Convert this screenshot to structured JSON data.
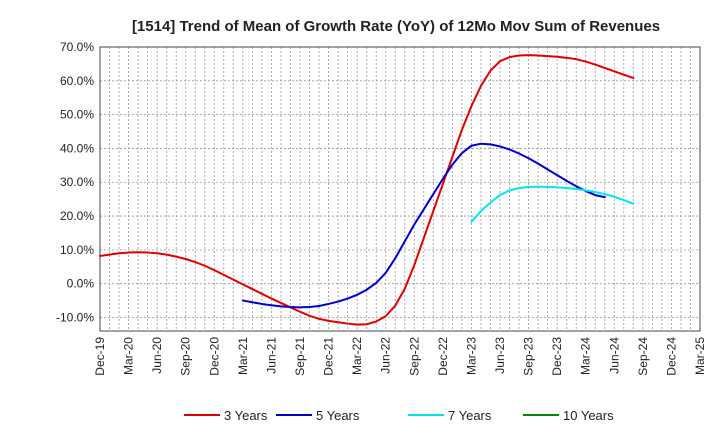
{
  "chart_data": {
    "type": "line",
    "title": "[1514]  Trend of Mean of Growth Rate (YoY) of 12Mo Mov Sum of Revenues",
    "xlabel": "",
    "ylabel": "",
    "ylim": [
      -14,
      70
    ],
    "y_ticks": [
      -10,
      0,
      10,
      20,
      30,
      40,
      50,
      60,
      70
    ],
    "y_tick_labels": [
      "-10.0%",
      "0.0%",
      "10.0%",
      "20.0%",
      "30.0%",
      "40.0%",
      "50.0%",
      "60.0%",
      "70.0%"
    ],
    "x_tick_labels": [
      "Dec-19",
      "Mar-20",
      "Jun-20",
      "Sep-20",
      "Dec-20",
      "Mar-21",
      "Jun-21",
      "Sep-21",
      "Dec-21",
      "Mar-22",
      "Jun-22",
      "Sep-22",
      "Dec-22",
      "Mar-23",
      "Jun-23",
      "Sep-23",
      "Dec-23",
      "Mar-24",
      "Jun-24",
      "Sep-24",
      "Dec-24",
      "Mar-25"
    ],
    "grid": true,
    "legend_position": "bottom",
    "series": [
      {
        "name": "3 Years",
        "color": "#dd0000",
        "start_index": 0,
        "values": [
          8.2,
          8.6,
          9.0,
          9.2,
          9.3,
          9.2,
          9.0,
          8.6,
          8.0,
          7.3,
          6.4,
          5.3,
          4.0,
          2.6,
          1.2,
          -0.2,
          -1.6,
          -3.0,
          -4.4,
          -5.7,
          -7.0,
          -8.3,
          -9.5,
          -10.4,
          -11.0,
          -11.4,
          -11.8,
          -12.1,
          -12.0,
          -11.2,
          -9.6,
          -6.5,
          -1.5,
          5.5,
          13.5,
          21.5,
          29.5,
          37.5,
          45.5,
          52.5,
          58.5,
          63.0,
          65.8,
          67.0,
          67.5,
          67.6,
          67.5,
          67.3,
          67.1,
          66.8,
          66.4,
          65.7,
          64.8,
          63.8,
          62.8,
          61.8,
          60.8
        ]
      },
      {
        "name": "5 Years",
        "color": "#0000cc",
        "start_index": 15,
        "values": [
          -5.0,
          -5.5,
          -6.0,
          -6.4,
          -6.7,
          -6.9,
          -7.0,
          -6.9,
          -6.6,
          -6.0,
          -5.3,
          -4.4,
          -3.3,
          -1.8,
          0.2,
          3.2,
          7.5,
          12.5,
          17.5,
          22.0,
          26.5,
          31.0,
          35.2,
          38.6,
          40.8,
          41.4,
          41.2,
          40.6,
          39.7,
          38.5,
          37.1,
          35.5,
          33.8,
          32.1,
          30.4,
          28.8,
          27.4,
          26.2,
          25.6
        ]
      },
      {
        "name": "7 Years",
        "color": "#00e5ee",
        "start_index": 39,
        "values": [
          18.3,
          21.5,
          24.0,
          26.2,
          27.6,
          28.3,
          28.6,
          28.7,
          28.6,
          28.5,
          28.3,
          28.0,
          27.6,
          27.1,
          26.5,
          25.7,
          24.7,
          23.7
        ]
      },
      {
        "name": "10 Years",
        "color": "#008800",
        "start_index": 0,
        "values": []
      }
    ]
  }
}
